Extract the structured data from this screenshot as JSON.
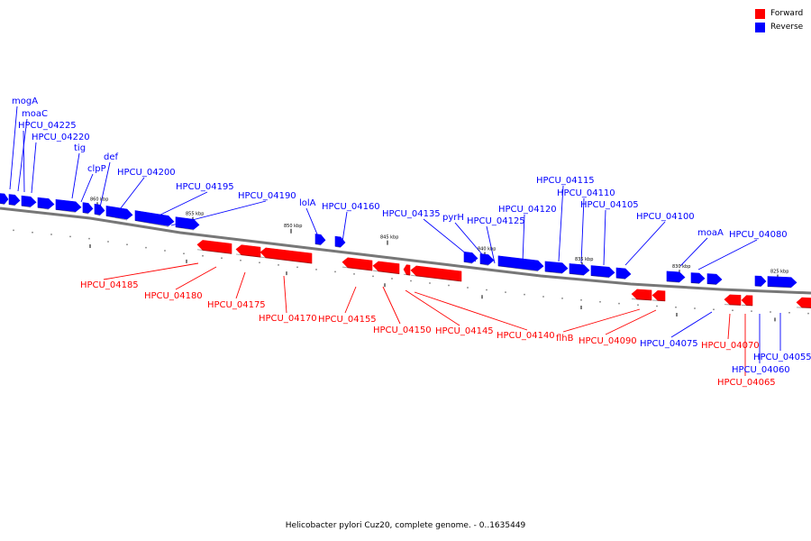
{
  "colors": {
    "forward": "#ff0000",
    "reverse": "#0000ff",
    "backbone": "#777777"
  },
  "legend": [
    {
      "label": "Forward",
      "color": "#ff0000"
    },
    {
      "label": "Reverse",
      "color": "#0000ff"
    }
  ],
  "caption": "Helicobacter pylori Cuz20, complete genome. - 0..1635449",
  "scale_labels": [
    "860 kbp",
    "855 kbp",
    "850 kbp",
    "845 kbp",
    "840 kbp",
    "835 kbp",
    "830 kbp",
    "825 kbp"
  ],
  "reverse_genes": [
    "mogA",
    "moaC",
    "HPCU_04225",
    "HPCU_04220",
    "tig",
    "clpP",
    "def",
    "HPCU_04200",
    "HPCU_04195",
    "HPCU_04190",
    "lolA",
    "HPCU_04160",
    "HPCU_04135",
    "pyrH",
    "HPCU_04125",
    "HPCU_04120",
    "HPCU_04115",
    "HPCU_04110",
    "HPCU_04105",
    "HPCU_04100",
    "moaA",
    "HPCU_04080",
    "HPCU_04075",
    "HPCU_04060",
    "HPCU_04055"
  ],
  "forward_genes": [
    "HPCU_04185",
    "HPCU_04180",
    "HPCU_04175",
    "HPCU_04170",
    "HPCU_04155",
    "HPCU_04150",
    "HPCU_04145",
    "HPCU_04140",
    "flhB",
    "HPCU_04090",
    "HPCU_04070",
    "HPCU_04065"
  ]
}
